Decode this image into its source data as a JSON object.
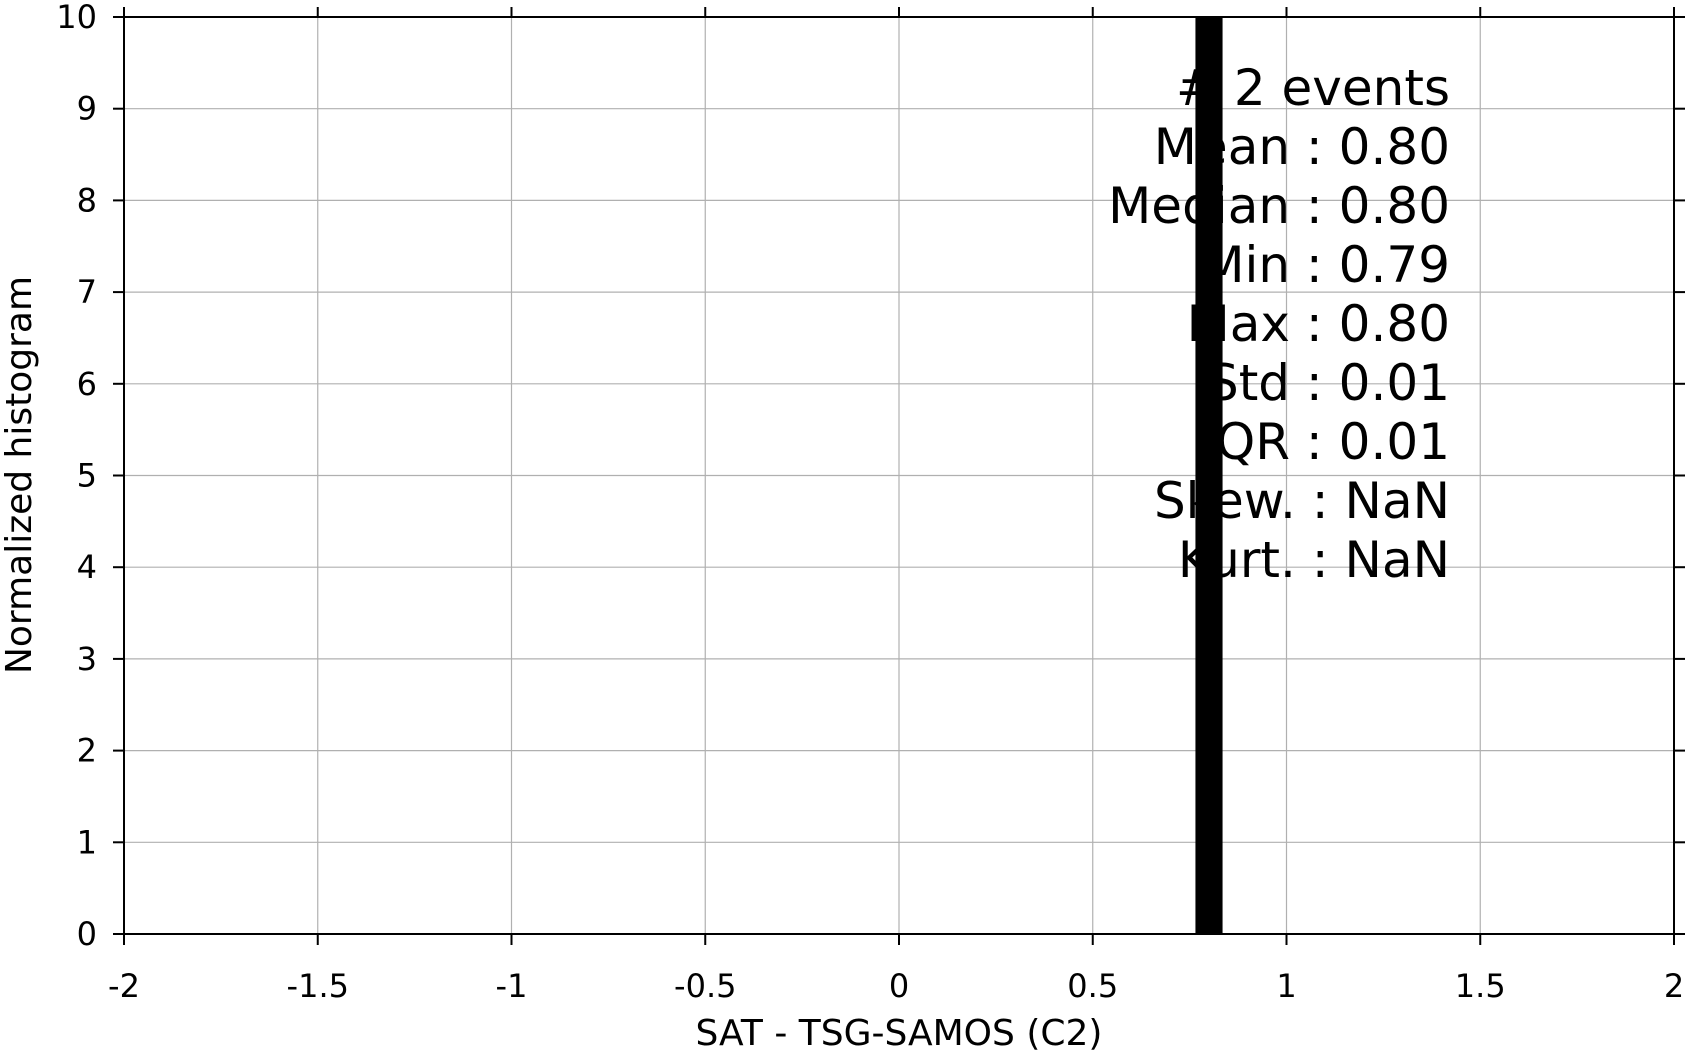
{
  "chart_data": {
    "type": "bar",
    "xlabel": "SAT - TSG-SAMOS (C2)",
    "ylabel": "Normalized histogram",
    "xlim": [
      -2,
      2
    ],
    "ylim": [
      0,
      10
    ],
    "xticks": [
      -2,
      -1.5,
      -1,
      -0.5,
      0,
      0.5,
      1,
      1.5,
      2
    ],
    "xtick_labels": [
      "-2",
      "-1.5",
      "-1",
      "-0.5",
      "0",
      "0.5",
      "1",
      "1.5",
      "2"
    ],
    "yticks": [
      0,
      1,
      2,
      3,
      4,
      5,
      6,
      7,
      8,
      9,
      10
    ],
    "ytick_labels": [
      "0",
      "1",
      "2",
      "3",
      "4",
      "5",
      "6",
      "7",
      "8",
      "9",
      "10"
    ],
    "grid": true,
    "bars": [
      {
        "x0": 0.765,
        "x1": 0.835,
        "value": 10
      }
    ],
    "bar_color": "#000000",
    "grid_color": "#b0b0b0",
    "stats": [
      {
        "label": "# ",
        "value": "2 events"
      },
      {
        "label": "Mean : ",
        "value": "0.80"
      },
      {
        "label": "Median : ",
        "value": "0.80"
      },
      {
        "label": "Min : ",
        "value": "0.79"
      },
      {
        "label": "Max : ",
        "value": "0.80"
      },
      {
        "label": "Std : ",
        "value": "0.01"
      },
      {
        "label": "IQR : ",
        "value": "0.01"
      },
      {
        "label": "Skew. : ",
        "value": "NaN"
      },
      {
        "label": "Kurt. : ",
        "value": "NaN"
      }
    ]
  }
}
